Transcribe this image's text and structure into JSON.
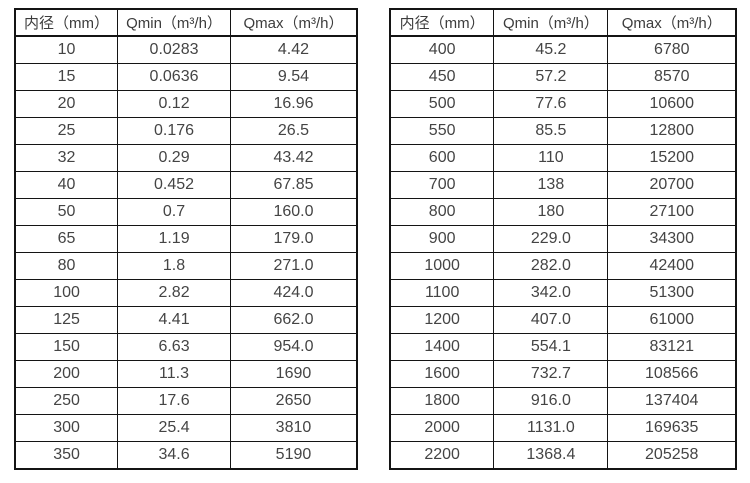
{
  "colors": {
    "background": "#ffffff",
    "border": "#141414",
    "text": "#444444"
  },
  "tables": [
    {
      "name": "flow-table-small-diameters",
      "headers": [
        "内径（mm）",
        "Qmin（m³/h）",
        "Qmax（m³/h）"
      ],
      "rows": [
        [
          "10",
          "0.0283",
          "4.42"
        ],
        [
          "15",
          "0.0636",
          "9.54"
        ],
        [
          "20",
          "0.12",
          "16.96"
        ],
        [
          "25",
          "0.176",
          "26.5"
        ],
        [
          "32",
          "0.29",
          "43.42"
        ],
        [
          "40",
          "0.452",
          "67.85"
        ],
        [
          "50",
          "0.7",
          "160.0"
        ],
        [
          "65",
          "1.19",
          "179.0"
        ],
        [
          "80",
          "1.8",
          "271.0"
        ],
        [
          "100",
          "2.82",
          "424.0"
        ],
        [
          "125",
          "4.41",
          "662.0"
        ],
        [
          "150",
          "6.63",
          "954.0"
        ],
        [
          "200",
          "11.3",
          "1690"
        ],
        [
          "250",
          "17.6",
          "2650"
        ],
        [
          "300",
          "25.4",
          "3810"
        ],
        [
          "350",
          "34.6",
          "5190"
        ]
      ]
    },
    {
      "name": "flow-table-large-diameters",
      "headers": [
        "内径（mm）",
        "Qmin（m³/h）",
        "Qmax（m³/h）"
      ],
      "rows": [
        [
          "400",
          "45.2",
          "6780"
        ],
        [
          "450",
          "57.2",
          "8570"
        ],
        [
          "500",
          "77.6",
          "10600"
        ],
        [
          "550",
          "85.5",
          "12800"
        ],
        [
          "600",
          "110",
          "15200"
        ],
        [
          "700",
          "138",
          "20700"
        ],
        [
          "800",
          "180",
          "27100"
        ],
        [
          "900",
          "229.0",
          "34300"
        ],
        [
          "1000",
          "282.0",
          "42400"
        ],
        [
          "1100",
          "342.0",
          "51300"
        ],
        [
          "1200",
          "407.0",
          "61000"
        ],
        [
          "1400",
          "554.1",
          "83121"
        ],
        [
          "1600",
          "732.7",
          "108566"
        ],
        [
          "1800",
          "916.0",
          "137404"
        ],
        [
          "2000",
          "1131.0",
          "169635"
        ],
        [
          "2200",
          "1368.4",
          "205258"
        ]
      ]
    }
  ]
}
